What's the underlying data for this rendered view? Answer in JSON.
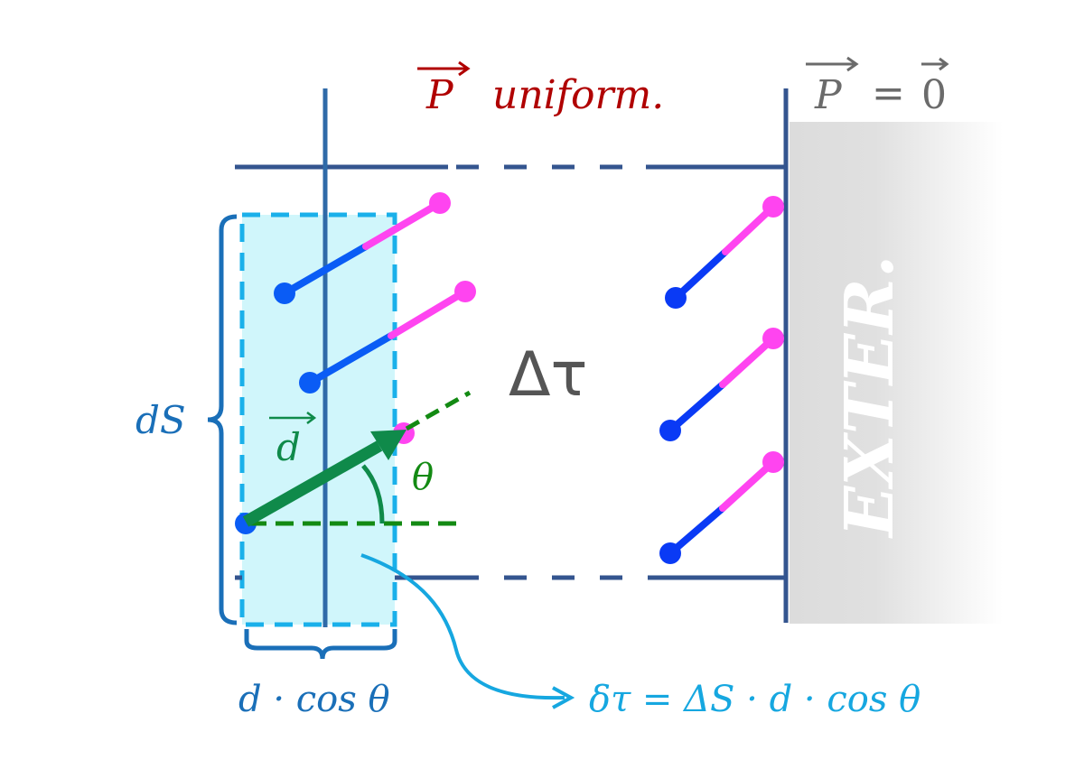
{
  "labels": {
    "p_uniform_vec": "P",
    "p_uniform_text": "uniform.",
    "p_zero_vec": "P",
    "p_zero_eq": "=",
    "p_zero_val": "0",
    "delta_tau": "Δτ",
    "ds": "dS",
    "d_vec": "d",
    "theta": "θ",
    "d_cos_theta": "d · cos θ",
    "formula": "δτ = ΔS · d · cos θ",
    "exterior": "EXTER."
  },
  "colors": {
    "wall": "#34558f",
    "p_uniform": "#b00000",
    "p_zero": "#6b6b6b",
    "delta_tau": "#555555",
    "brace": "#1a6fb8",
    "slab_fill": "#d0f6fb",
    "slab_stroke": "#1ab0ea",
    "dipole_negative": "#0a5cf5",
    "dipole_positive": "#ff44f0",
    "d_vector": "#0f8a4a",
    "theta": "#138a13",
    "formula": "#16a7e0",
    "exterior": "#dcdcdc"
  }
}
